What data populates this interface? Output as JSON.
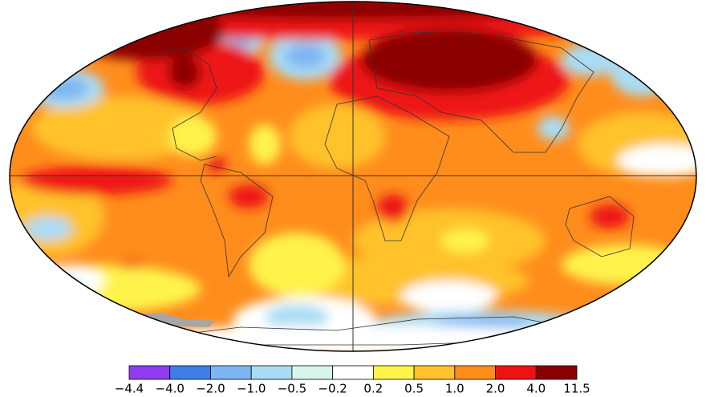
{
  "colorbar": {
    "labels": [
      "−4.4",
      "−4.0",
      "−2.0",
      "−1.0",
      "−0.5",
      "−0.2",
      "0.2",
      "0.5",
      "1.0",
      "2.0",
      "4.0",
      "11.5"
    ],
    "colors": [
      "#8f3cf0",
      "#3d7fe6",
      "#7db6f2",
      "#a9dcf4",
      "#d8f5ea",
      "#ffffff",
      "#fff34c",
      "#ffc22c",
      "#ff8d1c",
      "#ee1212",
      "#8a0000"
    ]
  }
}
